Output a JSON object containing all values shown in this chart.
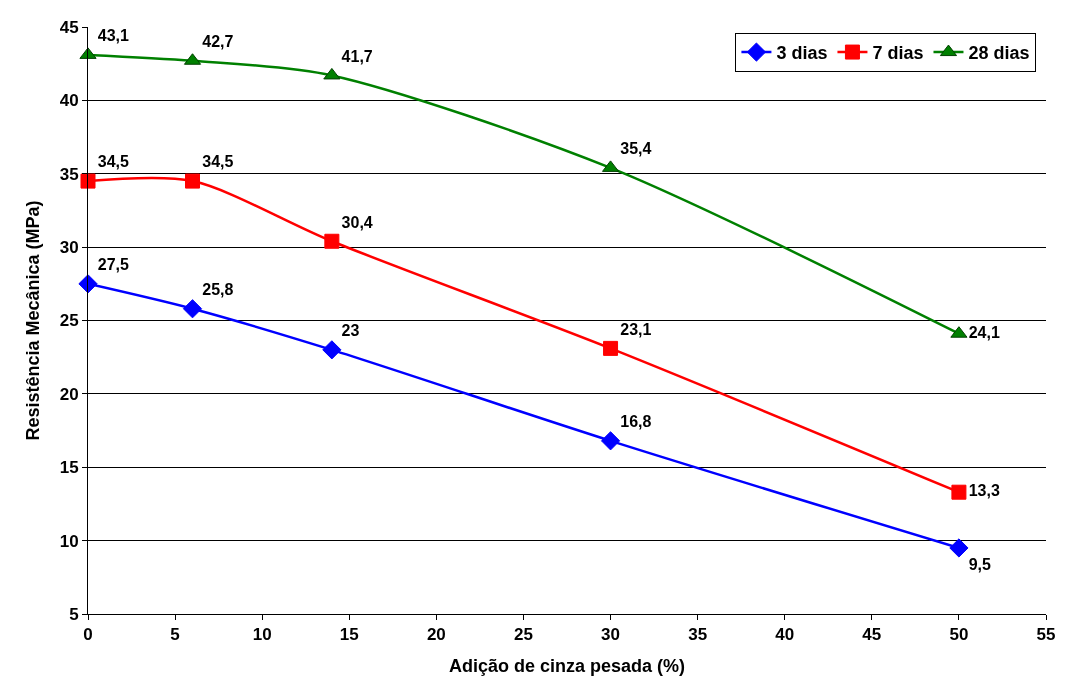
{
  "chart_data": {
    "type": "line",
    "xlabel": "Adição de cinza pesada (%)",
    "ylabel": "Resistência Mecânica (MPa)",
    "x": [
      0,
      6,
      14,
      30,
      50
    ],
    "series": [
      {
        "name": "3 dias",
        "color": "#0000ff",
        "marker": "diamond",
        "values": [
          27.5,
          25.8,
          23,
          16.8,
          9.5
        ],
        "value_labels": [
          "27,5",
          "25,8",
          "23",
          "16,8",
          "9,5"
        ]
      },
      {
        "name": "7 dias",
        "color": "#ff0000",
        "marker": "square",
        "values": [
          34.5,
          34.5,
          30.4,
          23.1,
          13.3
        ],
        "value_labels": [
          "34,5",
          "34,5",
          "30,4",
          "23,1",
          "13,3"
        ]
      },
      {
        "name": "28 dias",
        "color": "#008000",
        "marker": "triangle",
        "values": [
          43.1,
          42.7,
          41.7,
          35.4,
          24.1
        ],
        "value_labels": [
          "43,1",
          "42,7",
          "41,7",
          "35,4",
          "24,1"
        ]
      }
    ],
    "xlim": [
      0,
      55
    ],
    "xticks": [
      0,
      5,
      10,
      15,
      20,
      25,
      30,
      35,
      40,
      45,
      50,
      55
    ],
    "ylim": [
      5,
      45
    ],
    "yticks": [
      5,
      10,
      15,
      20,
      25,
      30,
      35,
      40,
      45
    ],
    "grid": "y",
    "legend": "top right",
    "line_style": "solid"
  }
}
